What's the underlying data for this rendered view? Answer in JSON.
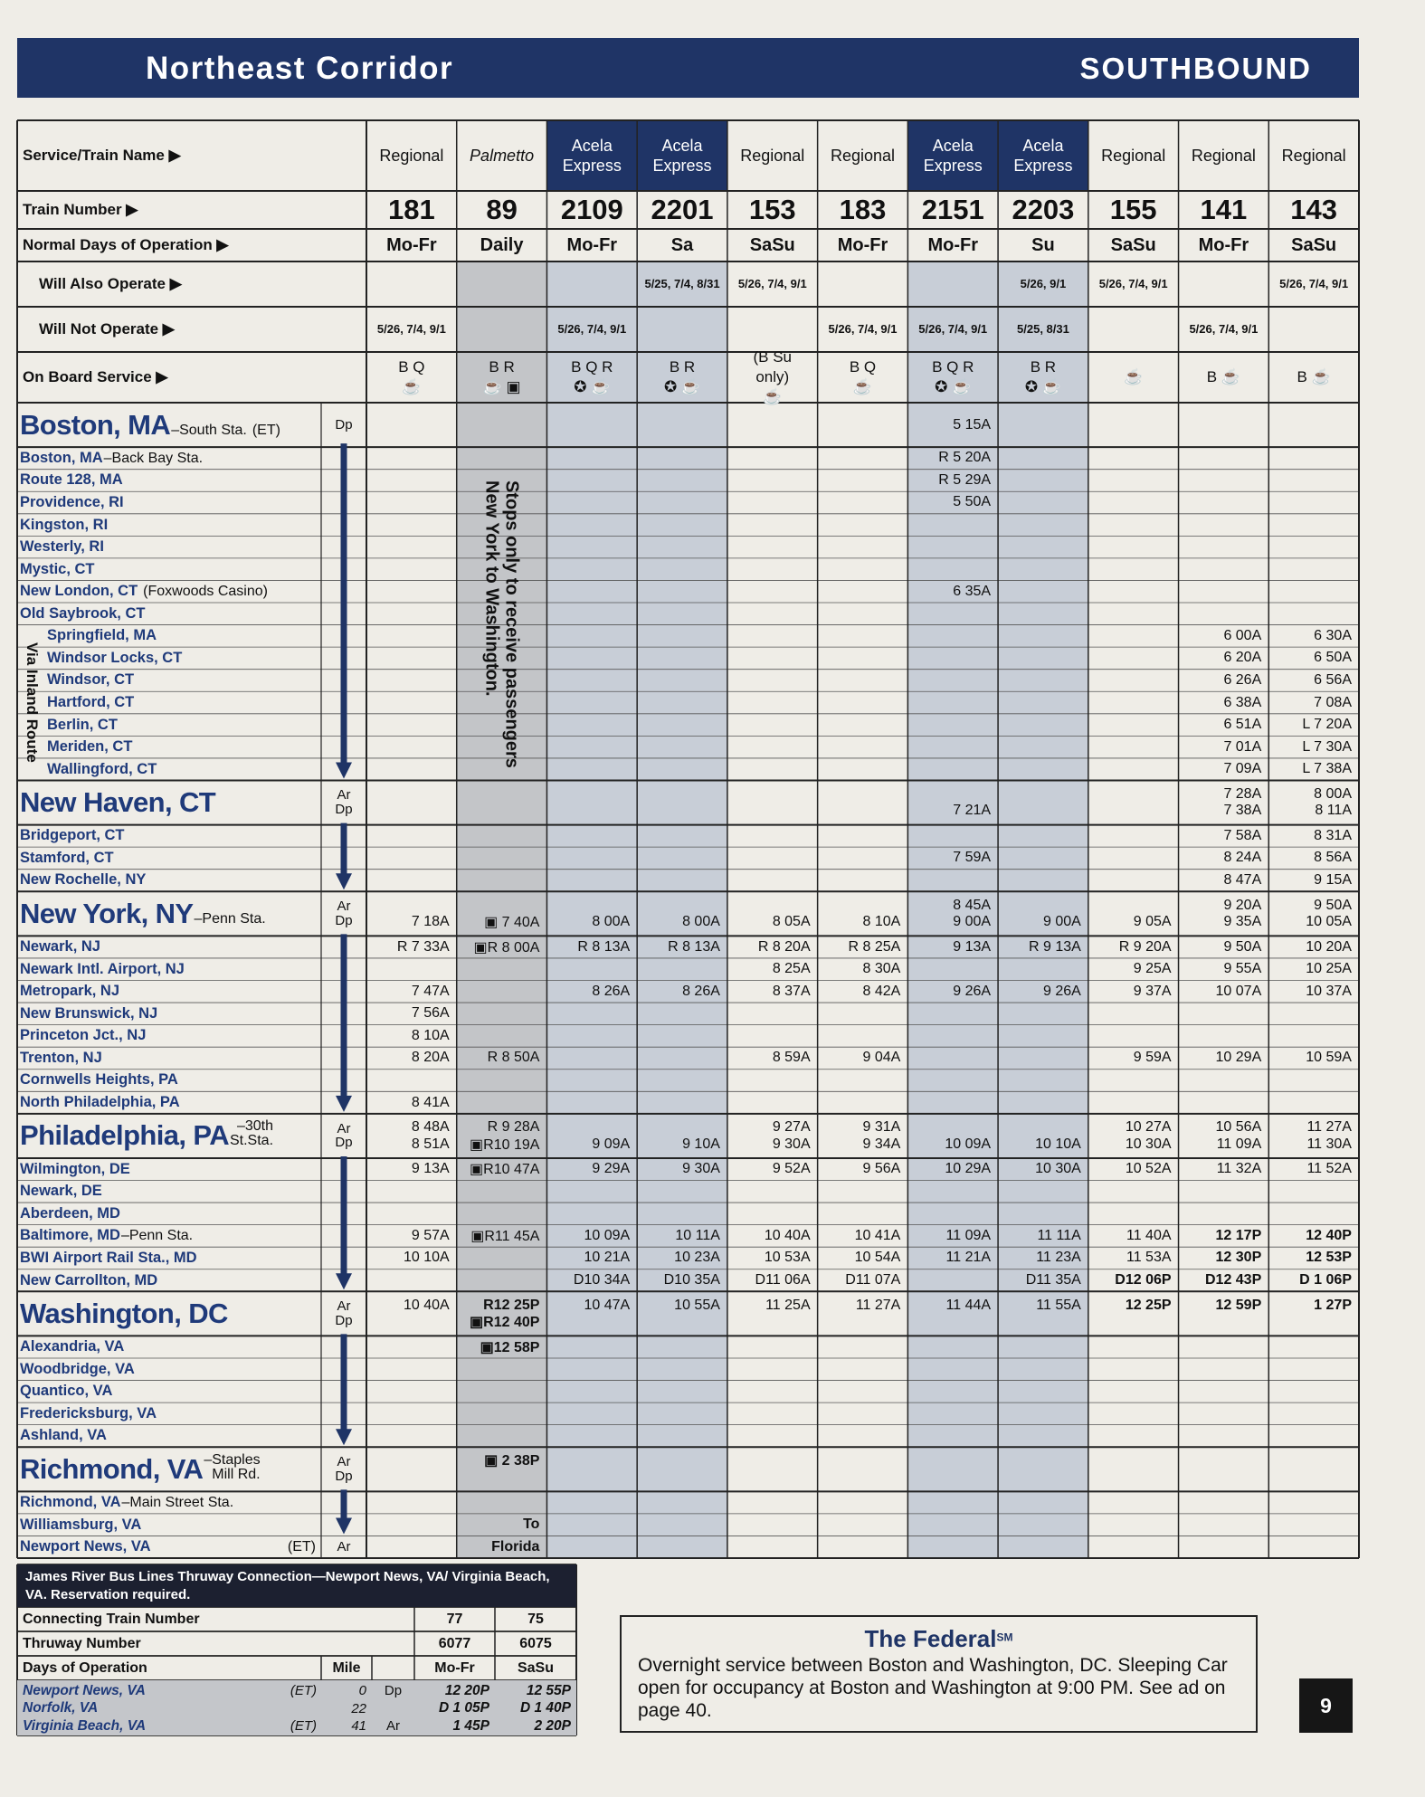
{
  "header": {
    "title": "Northeast Corridor",
    "direction": "SOUTHBOUND"
  },
  "row_labels": [
    "Service/Train Name ▶",
    "Train Number ▶",
    "Normal Days of Operation ▶",
    "Will Also Operate ▶",
    "Will Not Operate ▶",
    "On Board Service ▶"
  ],
  "columns": [
    {
      "service": "Regional",
      "number": "181",
      "days": "Mo-Fr",
      "not": "5/26, 7/4, 9/1",
      "onboard": "B Q\n☕"
    },
    {
      "service": "Palmetto",
      "italic": true,
      "number": "89",
      "days": "Daily",
      "onboard": "B R\n☕ ▣",
      "shade": "#c3c5c8",
      "note": [
        "Stops only to receive passengers",
        "New York to Washington."
      ]
    },
    {
      "service": "Acela Express",
      "header_color": "#1f3466",
      "number": "2109",
      "days": "Mo-Fr",
      "not": "5/26, 7/4, 9/1",
      "onboard": "B Q R\n✪ ☕",
      "shade": "#c8ced7"
    },
    {
      "service": "Acela Express",
      "header_color": "#1f3466",
      "number": "2201",
      "days": "Sa",
      "also": "5/25, 7/4, 8/31",
      "onboard": "B R\n✪ ☕",
      "shade": "#c8ced7"
    },
    {
      "service": "Regional",
      "number": "153",
      "days": "SaSu",
      "also": "5/26, 7/4, 9/1",
      "onboard": "(B Su only)\n☕"
    },
    {
      "service": "Regional",
      "number": "183",
      "days": "Mo-Fr",
      "not": "5/26, 7/4, 9/1",
      "onboard": "B Q\n☕"
    },
    {
      "service": "Acela Express",
      "header_color": "#1f3466",
      "number": "2151",
      "days": "Mo-Fr",
      "not": "5/26, 7/4, 9/1",
      "onboard": "B Q R\n✪ ☕",
      "shade": "#c8ced7"
    },
    {
      "service": "Acela Express",
      "header_color": "#1f3466",
      "number": "2203",
      "days": "Su",
      "also": "5/26, 9/1",
      "not": "5/25, 8/31",
      "onboard": "B R\n✪ ☕",
      "shade": "#c8ced7"
    },
    {
      "service": "Regional",
      "number": "155",
      "days": "SaSu",
      "also": "5/26, 7/4, 9/1",
      "onboard": "☕"
    },
    {
      "service": "Regional",
      "number": "141",
      "days": "Mo-Fr",
      "not": "5/26, 7/4, 9/1",
      "onboard": "B ☕"
    },
    {
      "service": "Regional",
      "number": "143",
      "days": "SaSu",
      "also": "5/26, 7/4, 9/1",
      "onboard": "B ☕"
    }
  ],
  "inland_label": "Via Inland Route",
  "stations": [
    {
      "name": "Boston, MA",
      "suffix": "–South Sta.",
      "zone": "(ET)",
      "ardp": "Dp",
      "major": true,
      "times": [
        null,
        null,
        null,
        null,
        null,
        null,
        "5 15A",
        null,
        null,
        null,
        null
      ]
    },
    {
      "name": "Boston, MA",
      "suffix": "–Back Bay Sta.",
      "times": [
        null,
        null,
        null,
        null,
        null,
        null,
        "R 5 20A",
        null,
        null,
        null,
        null
      ]
    },
    {
      "name": "Route 128, MA",
      "times": [
        null,
        null,
        null,
        null,
        null,
        null,
        "R 5 29A",
        null,
        null,
        null,
        null
      ]
    },
    {
      "name": "Providence, RI",
      "times": [
        null,
        null,
        null,
        null,
        null,
        null,
        "5 50A",
        null,
        null,
        null,
        null
      ]
    },
    {
      "name": "Kingston, RI"
    },
    {
      "name": "Westerly, RI"
    },
    {
      "name": "Mystic, CT"
    },
    {
      "name": "New London, CT",
      "note": "(Foxwoods Casino)",
      "times": [
        null,
        null,
        null,
        null,
        null,
        null,
        "6 35A",
        null,
        null,
        null,
        null
      ]
    },
    {
      "name": "Old Saybrook, CT"
    },
    {
      "name": "Springfield, MA",
      "inland": true,
      "times": [
        null,
        null,
        null,
        null,
        null,
        null,
        null,
        null,
        null,
        "6 00A",
        "6 30A"
      ]
    },
    {
      "name": "Windsor Locks, CT",
      "inland": true,
      "times": [
        null,
        null,
        null,
        null,
        null,
        null,
        null,
        null,
        null,
        "6 20A",
        "6 50A"
      ]
    },
    {
      "name": "Windsor, CT",
      "inland": true,
      "times": [
        null,
        null,
        null,
        null,
        null,
        null,
        null,
        null,
        null,
        "6 26A",
        "6 56A"
      ]
    },
    {
      "name": "Hartford, CT",
      "inland": true,
      "times": [
        null,
        null,
        null,
        null,
        null,
        null,
        null,
        null,
        null,
        "6 38A",
        "7 08A"
      ]
    },
    {
      "name": "Berlin, CT",
      "inland": true,
      "times": [
        null,
        null,
        null,
        null,
        null,
        null,
        null,
        null,
        null,
        "6 51A",
        "L 7 20A"
      ]
    },
    {
      "name": "Meriden, CT",
      "inland": true,
      "times": [
        null,
        null,
        null,
        null,
        null,
        null,
        null,
        null,
        null,
        "7 01A",
        "L 7 30A"
      ]
    },
    {
      "name": "Wallingford, CT",
      "inland": true,
      "times": [
        null,
        null,
        null,
        null,
        null,
        null,
        null,
        null,
        null,
        "7 09A",
        "L 7 38A"
      ]
    },
    {
      "name": "New Haven, CT",
      "ardp": "Ar\nDp",
      "major": true,
      "arrive": [
        null,
        null,
        null,
        null,
        null,
        null,
        null,
        null,
        null,
        "7 28A",
        "8 00A"
      ],
      "depart": [
        null,
        null,
        null,
        null,
        null,
        null,
        "7 21A",
        null,
        null,
        "7 38A",
        "8 11A"
      ]
    },
    {
      "name": "Bridgeport, CT",
      "times": [
        null,
        null,
        null,
        null,
        null,
        null,
        null,
        null,
        null,
        "7 58A",
        "8 31A"
      ]
    },
    {
      "name": "Stamford, CT",
      "times": [
        null,
        null,
        null,
        null,
        null,
        null,
        "7 59A",
        null,
        null,
        "8 24A",
        "8 56A"
      ]
    },
    {
      "name": "New Rochelle, NY",
      "times": [
        null,
        null,
        null,
        null,
        null,
        null,
        null,
        null,
        null,
        "8 47A",
        "9 15A"
      ]
    },
    {
      "name": "New York, NY",
      "suffix": "–Penn Sta.",
      "ardp": "Ar\nDp",
      "major": true,
      "arrive": [
        null,
        null,
        null,
        null,
        null,
        null,
        "8 45A",
        null,
        null,
        "9 20A",
        "9 50A"
      ],
      "depart": [
        "7 18A",
        "▣ 7 40A",
        "8 00A",
        "8 00A",
        "8 05A",
        "8 10A",
        "9 00A",
        "9 00A",
        "9 05A",
        "9 35A",
        "10 05A"
      ]
    },
    {
      "name": "Newark, NJ",
      "times": [
        "R 7 33A",
        "▣R 8 00A",
        "R 8 13A",
        "R 8 13A",
        "R 8 20A",
        "R 8 25A",
        "9 13A",
        "R 9 13A",
        "R 9 20A",
        "9 50A",
        "10 20A"
      ]
    },
    {
      "name": "Newark Intl. Airport, NJ",
      "times": [
        null,
        null,
        null,
        null,
        "8 25A",
        "8 30A",
        null,
        null,
        "9 25A",
        "9 55A",
        "10 25A"
      ]
    },
    {
      "name": "Metropark, NJ",
      "times": [
        "7 47A",
        null,
        "8 26A",
        "8 26A",
        "8 37A",
        "8 42A",
        "9 26A",
        "9 26A",
        "9 37A",
        "10 07A",
        "10 37A"
      ]
    },
    {
      "name": "New Brunswick, NJ",
      "times": [
        "7 56A",
        null,
        null,
        null,
        null,
        null,
        null,
        null,
        null,
        null,
        null
      ]
    },
    {
      "name": "Princeton Jct., NJ",
      "times": [
        "8 10A",
        null,
        null,
        null,
        null,
        null,
        null,
        null,
        null,
        null,
        null
      ]
    },
    {
      "name": "Trenton, NJ",
      "times": [
        "8 20A",
        "R 8 50A",
        null,
        null,
        "8 59A",
        "9 04A",
        null,
        null,
        "9 59A",
        "10 29A",
        "10 59A"
      ]
    },
    {
      "name": "Cornwells Heights, PA"
    },
    {
      "name": "North Philadelphia, PA",
      "times": [
        "8 41A",
        null,
        null,
        null,
        null,
        null,
        null,
        null,
        null,
        null,
        null
      ]
    },
    {
      "name": "Philadelphia, PA",
      "suffix": "–30th\nSt.Sta.",
      "ardp": "Ar\nDp",
      "major": true,
      "arrive": [
        "8 48A",
        "R 9 28A",
        null,
        null,
        "9 27A",
        "9 31A",
        null,
        null,
        "10 27A",
        "10 56A",
        "11 27A"
      ],
      "depart": [
        "8 51A",
        "▣R10 19A",
        "9 09A",
        "9 10A",
        "9 30A",
        "9 34A",
        "10 09A",
        "10 10A",
        "10 30A",
        "11 09A",
        "11 30A"
      ]
    },
    {
      "name": "Wilmington, DE",
      "times": [
        "9 13A",
        "▣R10 47A",
        "9 29A",
        "9 30A",
        "9 52A",
        "9 56A",
        "10 29A",
        "10 30A",
        "10 52A",
        "11 32A",
        "11 52A"
      ]
    },
    {
      "name": "Newark, DE"
    },
    {
      "name": "Aberdeen, MD"
    },
    {
      "name": "Baltimore, MD",
      "suffix": "–Penn Sta.",
      "times": [
        "9 57A",
        "▣R11 45A",
        "10 09A",
        "10 11A",
        "10 40A",
        "10 41A",
        "11 09A",
        "11 11A",
        "11 40A",
        "12 17P",
        "12 40P"
      ]
    },
    {
      "name": "BWI Airport Rail Sta., MD",
      "times": [
        "10 10A",
        null,
        "10 21A",
        "10 23A",
        "10 53A",
        "10 54A",
        "11 21A",
        "11 23A",
        "11 53A",
        "12 30P",
        "12 53P"
      ]
    },
    {
      "name": "New Carrollton, MD",
      "times": [
        null,
        null,
        "D10 34A",
        "D10 35A",
        "D11 06A",
        "D11 07A",
        null,
        "D11 35A",
        "D12 06P",
        "D12 43P",
        "D 1 06P"
      ]
    },
    {
      "name": "Washington, DC",
      "ardp": "Ar\nDp",
      "major": true,
      "arrive": [
        "10 40A",
        "R12 25P",
        "10 47A",
        "10 55A",
        "11 25A",
        "11 27A",
        "11 44A",
        "11 55A",
        "12 25P",
        "12 59P",
        "1 27P"
      ],
      "depart": [
        null,
        "▣R12 40P",
        null,
        null,
        null,
        null,
        null,
        null,
        null,
        null,
        null
      ]
    },
    {
      "name": "Alexandria, VA",
      "times": [
        null,
        "▣12 58P",
        null,
        null,
        null,
        null,
        null,
        null,
        null,
        null,
        null
      ]
    },
    {
      "name": "Woodbridge, VA"
    },
    {
      "name": "Quantico, VA"
    },
    {
      "name": "Fredericksburg, VA"
    },
    {
      "name": "Ashland, VA"
    },
    {
      "name": "Richmond, VA",
      "suffix": "–Staples\nMill Rd.",
      "ardp": "Ar\nDp",
      "major": true,
      "arrive": [
        null,
        "▣ 2 38P",
        null,
        null,
        null,
        null,
        null,
        null,
        null,
        null,
        null
      ]
    },
    {
      "name": "Richmond, VA",
      "suffix": "–Main Street Sta."
    },
    {
      "name": "Williamsburg, VA",
      "times": [
        null,
        "To",
        null,
        null,
        null,
        null,
        null,
        null,
        null,
        null,
        null
      ]
    },
    {
      "name": "Newport News, VA",
      "zone": "(ET)",
      "ardp": "Ar",
      "times": [
        null,
        "Florida",
        null,
        null,
        null,
        null,
        null,
        null,
        null,
        null,
        null
      ]
    }
  ],
  "thruway": {
    "title": "James River Bus Lines Thruway Connection—Newport News, VA/ Virginia Beach, VA. Reservation required.",
    "connecting_label": "Connecting Train Number",
    "connecting": [
      "77",
      "75"
    ],
    "thruway_label": "Thruway Number",
    "thruway_numbers": [
      "6077",
      "6075"
    ],
    "days_label": "Days of Operation",
    "mile_label": "Mile",
    "days": [
      "Mo-Fr",
      "SaSu"
    ],
    "stops": [
      {
        "name": "Newport News, VA",
        "zone": "(ET)",
        "mile": 0,
        "ardp": "Dp",
        "times": [
          "12 20P",
          "12 55P"
        ]
      },
      {
        "name": "Norfolk, VA",
        "mile": 22,
        "times": [
          "D 1 05P",
          "D 1 40P"
        ]
      },
      {
        "name": "Virginia Beach, VA",
        "zone": "(ET)",
        "mile": 41,
        "ardp": "Ar",
        "times": [
          "1 45P",
          "2 20P"
        ]
      }
    ]
  },
  "federal": {
    "title": "The Federal",
    "mark": "SM",
    "text": "Overnight service between Boston and Washington, DC. Sleeping Car open for occupancy at Boston and Washington at 9:00 PM. See ad on page 40."
  },
  "page_number": "9"
}
